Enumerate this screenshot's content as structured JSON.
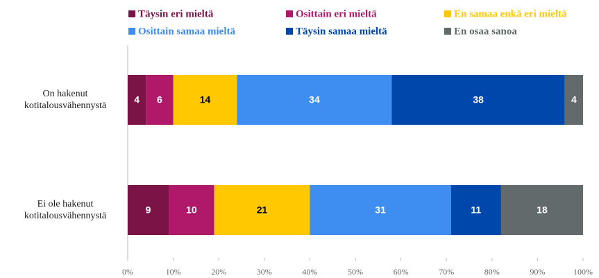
{
  "chart_data": {
    "type": "stacked_bar_horizontal",
    "categories": [
      "On hakenut kotitalousvähennystä",
      "Ei ole hakenut kotitalousvähennystä"
    ],
    "series": [
      {
        "name": "Täysin eri mieltä",
        "color": "#7b1346",
        "values": [
          4,
          9
        ]
      },
      {
        "name": "Osittain eri mieltä",
        "color": "#b0186a",
        "values": [
          6,
          10
        ]
      },
      {
        "name": "En samaa enkä eri mieltä",
        "color": "#ffc800",
        "values": [
          14,
          21
        ]
      },
      {
        "name": "Osittain samaa mieltä",
        "color": "#3d8ef0",
        "values": [
          34,
          31
        ]
      },
      {
        "name": "Täysin samaa mieltä",
        "color": "#0047ab",
        "values": [
          38,
          11
        ]
      },
      {
        "name": "En osaa sanoa",
        "color": "#636a6b",
        "values": [
          4,
          18
        ]
      }
    ],
    "xlim": [
      0,
      100
    ],
    "xticks": [
      {
        "value": 0,
        "label": "0%"
      },
      {
        "value": 10,
        "label": "10%"
      },
      {
        "value": 20,
        "label": "20%"
      },
      {
        "value": 30,
        "label": "30%"
      },
      {
        "value": 40,
        "label": "40%"
      },
      {
        "value": 50,
        "label": "50%"
      },
      {
        "value": 60,
        "label": "60%"
      },
      {
        "value": 70,
        "label": "70%"
      },
      {
        "value": 80,
        "label": "80%"
      },
      {
        "value": 90,
        "label": "90%"
      },
      {
        "value": 100,
        "label": "100%"
      }
    ],
    "legend": "top"
  }
}
